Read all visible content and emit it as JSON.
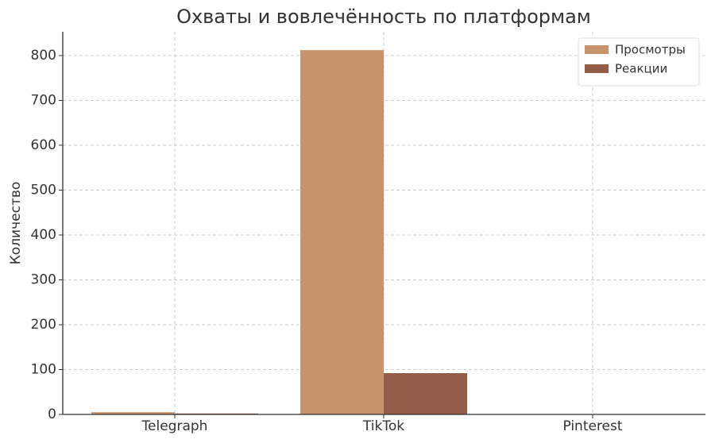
{
  "chart_data": {
    "type": "bar",
    "title": "Охваты и вовлечённость по платформам",
    "ylabel": "Количество",
    "categories": [
      "Telegraph",
      "TikTok",
      "Pinterest"
    ],
    "series": [
      {
        "name": "Просмотры",
        "color": "#c8936a",
        "values": [
          5,
          812,
          0
        ]
      },
      {
        "name": "Реакции",
        "color": "#955d47",
        "values": [
          2,
          92,
          0
        ]
      }
    ],
    "ylim": [
      0,
      853
    ],
    "yticks": [
      0,
      100,
      200,
      300,
      400,
      500,
      600,
      700,
      800
    ],
    "grid": true,
    "legend": "upper right"
  }
}
